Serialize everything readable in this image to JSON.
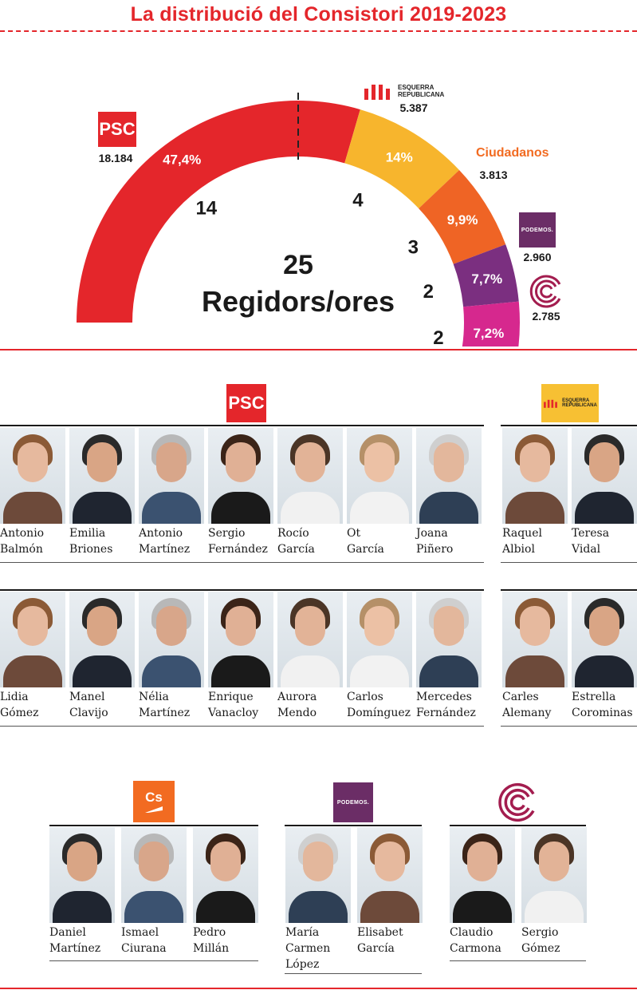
{
  "header": {
    "title": "La distribució del Consistori 2019-2023"
  },
  "chart_data": {
    "type": "pie",
    "variant": "half-donut parliament chart",
    "total_seats": 25,
    "total_label_number": "25",
    "total_label_text": "Regidors/ores",
    "series": [
      {
        "name": "PSC",
        "votes": 18184,
        "votes_label": "18.184",
        "percent": 47.4,
        "percent_label": "47,4%",
        "seats": 14,
        "color": "#e4262b"
      },
      {
        "name": "ESQUERRA REPUBLICANA",
        "votes": 5387,
        "votes_label": "5.387",
        "percent": 14.0,
        "percent_label": "14%",
        "seats": 4,
        "color": "#f7b52d"
      },
      {
        "name": "Ciudadanos",
        "votes": 3813,
        "votes_label": "3.813",
        "percent": 9.9,
        "percent_label": "9,9%",
        "seats": 3,
        "color": "#ef6425"
      },
      {
        "name": "PODEMOS.",
        "votes": 2960,
        "votes_label": "2.960",
        "percent": 7.7,
        "percent_label": "7,7%",
        "seats": 2,
        "color": "#7b2f80"
      },
      {
        "name": "Comú",
        "votes": 2785,
        "votes_label": "2.785",
        "percent": 7.2,
        "percent_label": "7,2%",
        "seats": 2,
        "color": "#d6288e"
      }
    ]
  },
  "logos": {
    "psc": "PSC",
    "erc_line1": "ESQUERRA",
    "erc_line2": "REPUBLICANA",
    "cs_word": "Ciudadanos",
    "cs_badge": "Cs",
    "podemos": "PODEMOS."
  },
  "groups": {
    "psc_row1": [
      {
        "first": "Antonio",
        "last": "Balmón"
      },
      {
        "first": "Emilia",
        "last": "Briones"
      },
      {
        "first": "Antonio",
        "last": "Martínez"
      },
      {
        "first": "Sergio",
        "last": "Fernández"
      },
      {
        "first": "Rocío",
        "last": "García"
      },
      {
        "first": "Ot",
        "last": "García"
      },
      {
        "first": "Joana",
        "last": "Piñero"
      }
    ],
    "psc_row2": [
      {
        "first": "Lidia",
        "last": "Gómez"
      },
      {
        "first": "Manel",
        "last": "Clavijo"
      },
      {
        "first": "Nélia",
        "last": "Martínez"
      },
      {
        "first": "Enrique",
        "last": "Vanacloy"
      },
      {
        "first": "Aurora",
        "last": "Mendo"
      },
      {
        "first": "Carlos",
        "last": "Domínguez"
      },
      {
        "first": "Mercedes",
        "last": "Fernández"
      }
    ],
    "erc_row1": [
      {
        "first": "Raquel",
        "last": "Albiol"
      },
      {
        "first": "Teresa",
        "last": "Vidal"
      }
    ],
    "erc_row2": [
      {
        "first": "Carles",
        "last": "Alemany"
      },
      {
        "first": "Estrella",
        "last": "Corominas"
      }
    ],
    "cs": [
      {
        "first": "Daniel",
        "last": "Martínez"
      },
      {
        "first": "Ismael",
        "last": "Ciurana"
      },
      {
        "first": "Pedro",
        "last": "Millán"
      }
    ],
    "podemos": [
      {
        "first": "María",
        "last": "Carmen",
        "extra": "López"
      },
      {
        "first": "Elisabet",
        "last": "García"
      }
    ],
    "comu": [
      {
        "first": "Claudio",
        "last": "Carmona"
      },
      {
        "first": "Sergio",
        "last": "Gómez"
      }
    ]
  }
}
